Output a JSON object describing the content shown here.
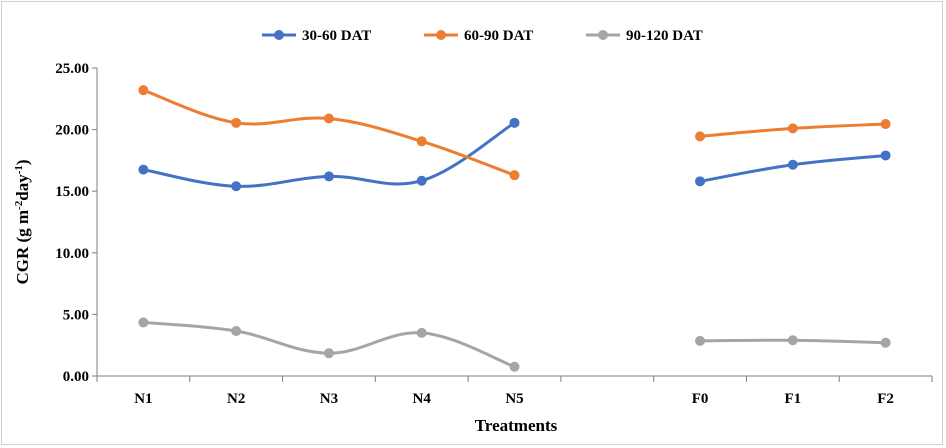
{
  "chart_data": {
    "type": "line",
    "categories": [
      "N1",
      "N2",
      "N3",
      "N4",
      "N5",
      "",
      "F0",
      "F1",
      "F2"
    ],
    "yticks": [
      "0.00",
      "5.00",
      "10.00",
      "15.00",
      "20.00",
      "25.00"
    ],
    "ylim": [
      0,
      25
    ],
    "xlabel": "Treatments",
    "ylabel_main": "CGR (g m",
    "ylabel_sup1": "-2",
    "ylabel_mid": "day",
    "ylabel_sup2": "-1",
    "ylabel_end": ")",
    "grid": false,
    "legend_position": "top",
    "series": [
      {
        "name": "30-60 DAT",
        "color": "#4472C4",
        "groups": [
          [
            16.75,
            15.4,
            16.2,
            15.85,
            20.55
          ],
          [
            15.8,
            17.15,
            17.9
          ]
        ]
      },
      {
        "name": "60-90 DAT",
        "color": "#ED7D31",
        "groups": [
          [
            23.2,
            20.55,
            20.9,
            19.05,
            16.3
          ],
          [
            19.45,
            20.1,
            20.45
          ]
        ]
      },
      {
        "name": "90-120 DAT",
        "color": "#A5A5A5",
        "groups": [
          [
            4.35,
            3.65,
            1.85,
            3.5,
            0.75
          ],
          [
            2.85,
            2.9,
            2.7
          ]
        ]
      }
    ]
  }
}
